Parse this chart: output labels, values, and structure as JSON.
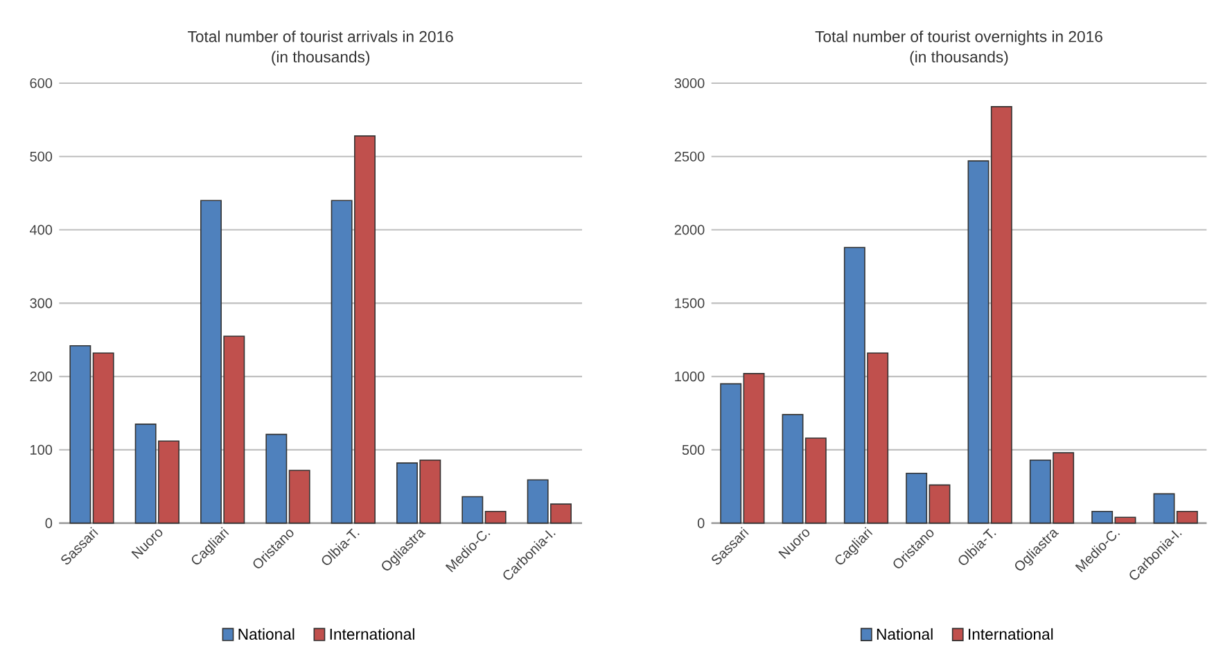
{
  "chart_data": [
    {
      "type": "bar",
      "title": "Total number  of tourist arrivals in 2016",
      "subtitle": "(in thousands)",
      "categories": [
        "Sassari",
        "Nuoro",
        "Cagliari",
        "Oristano",
        "Olbia-T.",
        "Ogliastra",
        "Medio-C.",
        "Carbonia-I."
      ],
      "series": [
        {
          "name": "National",
          "color": "#4f81bd",
          "values": [
            242,
            135,
            440,
            121,
            440,
            82,
            36,
            59
          ]
        },
        {
          "name": "International",
          "color": "#c0504d",
          "values": [
            232,
            112,
            255,
            72,
            528,
            86,
            16,
            26
          ]
        }
      ],
      "ylim": [
        0,
        600
      ],
      "yticks": [
        0,
        100,
        200,
        300,
        400,
        500,
        600
      ],
      "grid": "y",
      "legend": "bottom"
    },
    {
      "type": "bar",
      "title": "Total number  of tourist overnights in 2016",
      "subtitle": "(in thousands)",
      "categories": [
        "Sassari",
        "Nuoro",
        "Cagliari",
        "Oristano",
        "Olbia-T.",
        "Ogliastra",
        "Medio-C.",
        "Carbonia-I."
      ],
      "series": [
        {
          "name": "National",
          "color": "#4f81bd",
          "values": [
            950,
            740,
            1880,
            340,
            2470,
            430,
            80,
            200
          ]
        },
        {
          "name": "International",
          "color": "#c0504d",
          "values": [
            1020,
            580,
            1160,
            260,
            2840,
            480,
            40,
            80
          ]
        }
      ],
      "ylim": [
        0,
        3000
      ],
      "yticks": [
        0,
        500,
        1000,
        1500,
        2000,
        2500,
        3000
      ],
      "grid": "y",
      "legend": "bottom"
    }
  ]
}
